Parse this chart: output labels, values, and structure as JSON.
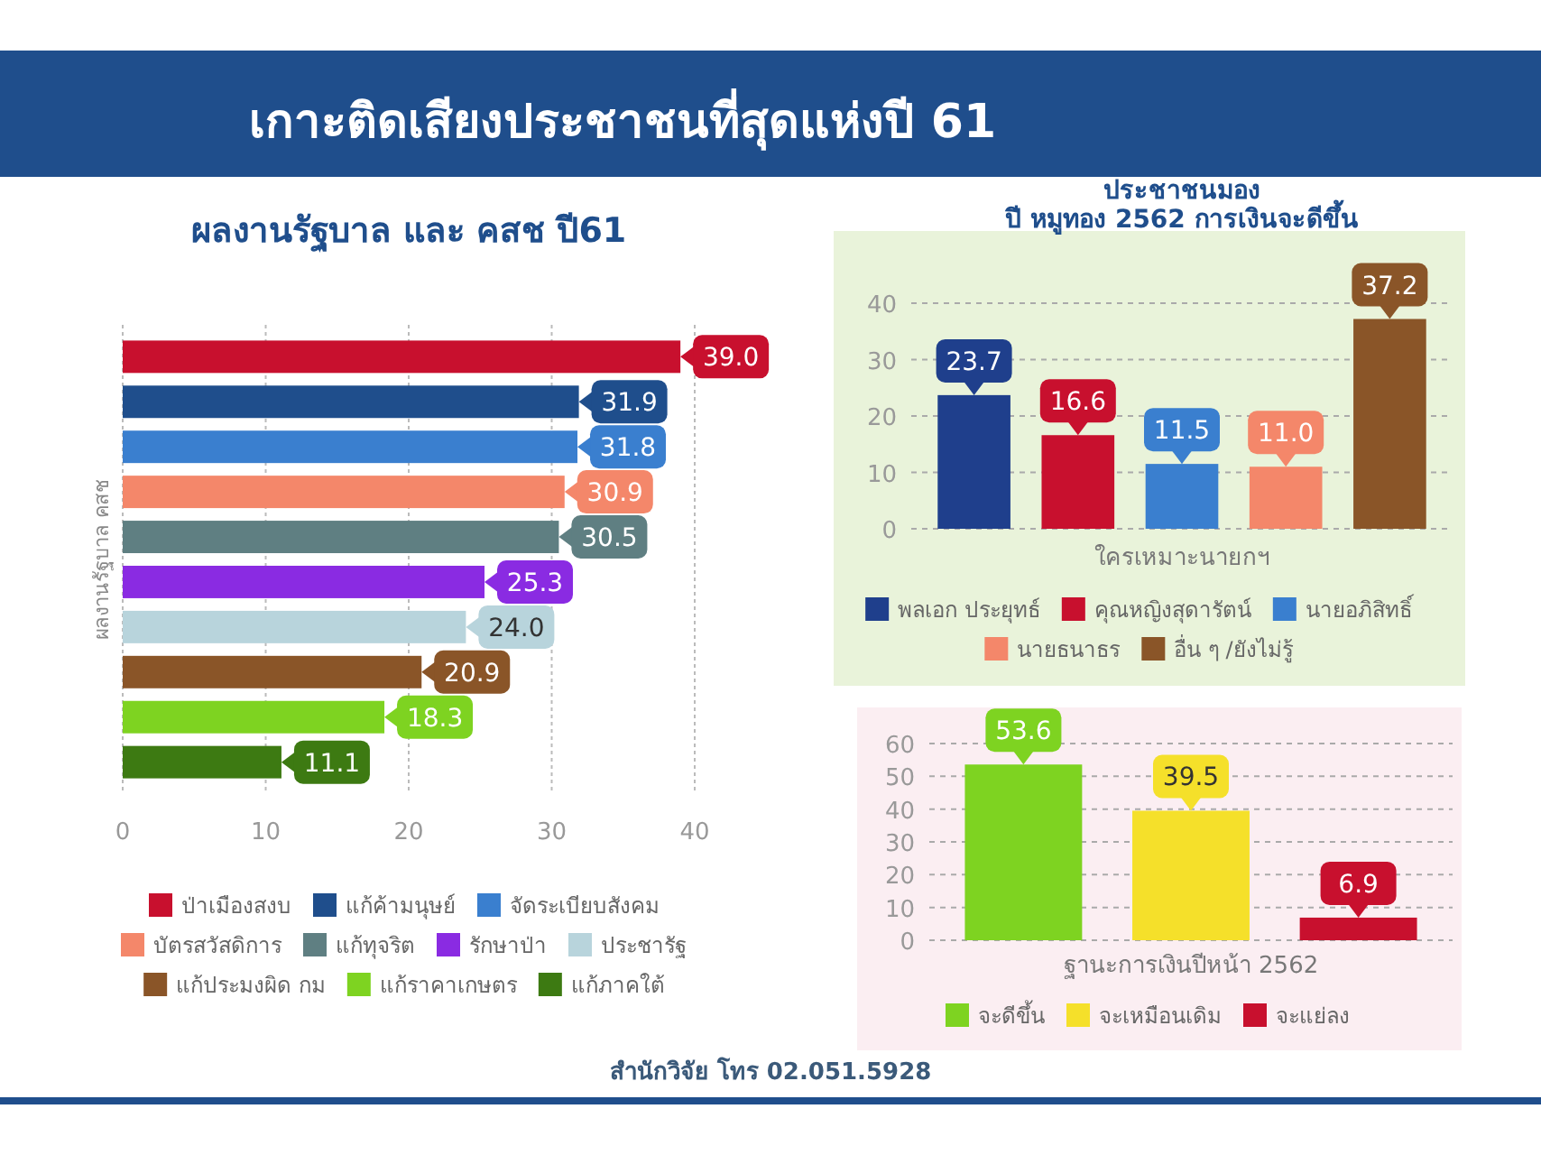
{
  "chart_data": [
    {
      "type": "other",
      "title": "เกาะติดเสียงประชาชนที่สุดแห่งปี 61"
    },
    {
      "type": "bar",
      "orientation": "horizontal",
      "title": "ผลงานรัฐบาล และ คสช ปี61",
      "ylabel": "ผลงานรัฐบาล คสช",
      "categories": [
        null
      ],
      "series": [
        {
          "name": "ป่าเมืองสงบ",
          "color": "#c8102e",
          "values": [
            39.0
          ],
          "value_labels": [
            "39.0"
          ]
        },
        {
          "name": "แก้ค้ามนุษย์",
          "color": "#1f4e8c",
          "values": [
            31.9
          ],
          "value_labels": [
            "31.9"
          ]
        },
        {
          "name": "จัดระเบียบสังคม",
          "color": "#3a7fcf",
          "values": [
            31.8
          ],
          "value_labels": [
            "31.8"
          ]
        },
        {
          "name": "บัตรสวัสดิการ",
          "color": "#f4876a",
          "values": [
            30.9
          ],
          "value_labels": [
            "30.9"
          ]
        },
        {
          "name": "แก้ทุจริต",
          "color": "#5f7f82",
          "values": [
            30.5
          ],
          "value_labels": [
            "30.5"
          ]
        },
        {
          "name": "รักษาป่า",
          "color": "#8a2be2",
          "values": [
            25.3
          ],
          "value_labels": [
            "25.3"
          ]
        },
        {
          "name": "ประชารัฐ",
          "color": "#b8d4dc",
          "values": [
            24.0
          ],
          "value_labels": [
            "24.0"
          ]
        },
        {
          "name": "แก้ประมงผิด กม",
          "color": "#8a5528",
          "values": [
            20.9
          ],
          "value_labels": [
            "20.9"
          ]
        },
        {
          "name": "แก้ราคาเกษตร",
          "color": "#7ed321",
          "values": [
            18.3
          ],
          "value_labels": [
            "18.3"
          ]
        },
        {
          "name": "แก้ภาคใต้",
          "color": "#3d7a12",
          "values": [
            11.1
          ],
          "value_labels": [
            "11.1"
          ]
        }
      ],
      "xlim": [
        0,
        40
      ],
      "xticks": [
        0,
        10,
        20,
        30,
        40
      ],
      "grid": "x",
      "legend": "bottom"
    },
    {
      "type": "bar",
      "title": "ประชาชนมอง",
      "subtitle": "ปี หมูทอง 2562 การเงินจะดีขึ้น",
      "categories": [
        "ใครเหมาะนายกฯ"
      ],
      "series": [
        {
          "name": "พลเอก ประยุทธ์",
          "color": "#1f3f8c",
          "values": [
            23.7
          ],
          "value_labels": [
            "23.7"
          ]
        },
        {
          "name": "คุณหญิงสุดารัตน์",
          "color": "#c8102e",
          "values": [
            16.6
          ],
          "value_labels": [
            "16.6"
          ]
        },
        {
          "name": "นายอภิสิทธิ์",
          "color": "#3a7fcf",
          "values": [
            11.5
          ],
          "value_labels": [
            "11.5"
          ]
        },
        {
          "name": "นายธนาธร",
          "color": "#f4876a",
          "values": [
            11.0
          ],
          "value_labels": [
            "11.0"
          ]
        },
        {
          "name": "อื่น ๆ /ยังไม่รู้",
          "color": "#8a5528",
          "values": [
            37.2
          ],
          "value_labels": [
            "37.2"
          ]
        }
      ],
      "ylim": [
        0,
        40
      ],
      "yticks": [
        0,
        10,
        20,
        30,
        40
      ],
      "grid": "y",
      "legend": "bottom"
    },
    {
      "type": "bar",
      "categories": [
        "ฐานะการเงินปีหน้า 2562"
      ],
      "series": [
        {
          "name": "จะดีขึ้น",
          "color": "#7ed321",
          "values": [
            53.6
          ],
          "value_labels": [
            "53.6"
          ]
        },
        {
          "name": "จะเหมือนเดิม",
          "color": "#f5e02a",
          "values": [
            39.5
          ],
          "value_labels": [
            "39.5"
          ]
        },
        {
          "name": "จะแย่ลง",
          "color": "#c8102e",
          "values": [
            6.9
          ],
          "value_labels": [
            "6.9"
          ]
        }
      ],
      "ylim": [
        0,
        60
      ],
      "yticks": [
        0,
        10,
        20,
        30,
        40,
        50,
        60
      ],
      "grid": "y",
      "legend": "bottom"
    },
    {
      "type": "other",
      "annotations": [
        "สำนักวิจัย โทร 02.051.5928"
      ]
    }
  ]
}
